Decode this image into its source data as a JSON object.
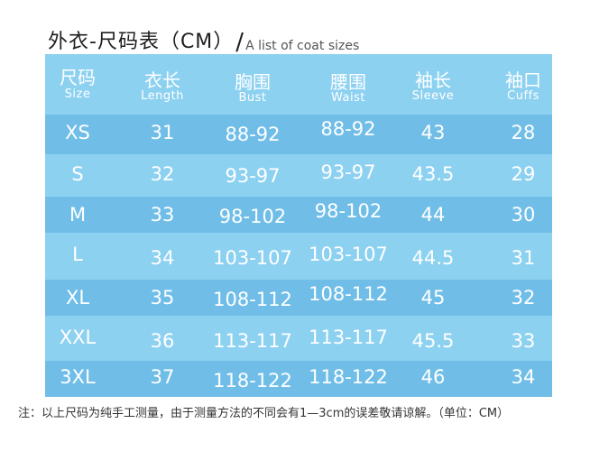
{
  "title": {
    "main": "外衣-尺码表（CM）",
    "slash": "/",
    "sub": "A list of coat sizes"
  },
  "table": {
    "headers": [
      {
        "cn": "尺码",
        "en": "Size"
      },
      {
        "cn": "衣长",
        "en": "Length"
      },
      {
        "cn": "胸围",
        "en": "Bust"
      },
      {
        "cn": "腰围",
        "en": "Waist"
      },
      {
        "cn": "袖长",
        "en": "Sleeve"
      },
      {
        "cn": "袖口",
        "en": "Cuffs"
      }
    ],
    "rows": [
      [
        "XS",
        "31",
        "88-92",
        "88-92",
        "43",
        "28"
      ],
      [
        "S",
        "32",
        "93-97",
        "93-97",
        "43.5",
        "29"
      ],
      [
        "M",
        "33",
        "98-102",
        "98-102",
        "44",
        "30"
      ],
      [
        "L",
        "34",
        "103-107",
        "103-107",
        "44.5",
        "31"
      ],
      [
        "XL",
        "35",
        "108-112",
        "108-112",
        "45",
        "32"
      ],
      [
        "XXL",
        "36",
        "113-117",
        "113-117",
        "45.5",
        "33"
      ],
      [
        "3XL",
        "37",
        "118-122",
        "118-122",
        "46",
        "34"
      ]
    ]
  },
  "colors": {
    "header_bg": "#8dd1f1",
    "row_dark": "#70bee8",
    "row_light": "#8dd1f1",
    "text": "#ffffff"
  },
  "note": "注：以上尺码为纯手工测量，由于测量方法的不同会有1—3cm的误差敬请谅解。（单位：CM）"
}
